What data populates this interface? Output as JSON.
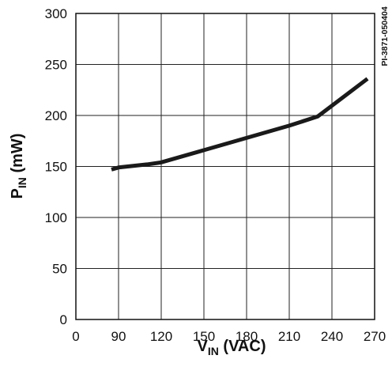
{
  "chart_data": {
    "type": "line",
    "xlabel": {
      "main": "V",
      "sub": "IN",
      "unit": " (VAC)"
    },
    "ylabel": {
      "main": "P",
      "sub": "IN",
      "unit": " (mW)"
    },
    "xlim": [
      0,
      270
    ],
    "ylim": [
      0,
      300
    ],
    "x_ticks": [
      0,
      90,
      120,
      150,
      180,
      210,
      240,
      270
    ],
    "y_ticks": [
      0,
      50,
      100,
      150,
      200,
      250,
      300
    ],
    "grid": true,
    "side_code": "PI-3871-050404",
    "series": [
      {
        "color": "#1a1a1a",
        "x": [
          75,
          90,
          110,
          120,
          150,
          180,
          210,
          230,
          265
        ],
        "y": [
          147,
          149,
          152,
          154,
          166,
          178,
          190,
          199,
          236
        ]
      }
    ]
  }
}
